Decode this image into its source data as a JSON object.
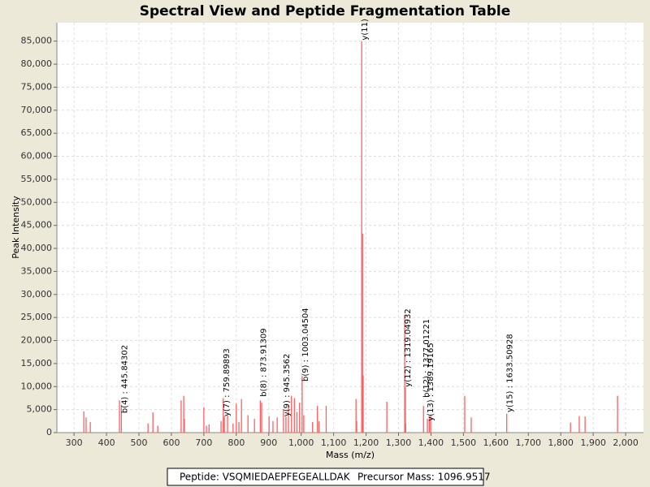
{
  "chart_data": {
    "type": "stem",
    "title": "Spectral View and Peptide Fragmentation Table",
    "x_label": "Mass (m/z)",
    "y_label": "Peak Intensity",
    "color": "#ff5f5f",
    "grid": true,
    "xlim": [
      247,
      2055
    ],
    "ylim": [
      0,
      89000
    ],
    "xticks": [
      300,
      400,
      500,
      600,
      700,
      800,
      900,
      {
        "value": 1000,
        "label": "1,000"
      },
      {
        "value": 1100,
        "label": "1,100"
      },
      {
        "value": 1200,
        "label": "1,200"
      },
      {
        "value": 1300,
        "label": "1,300"
      },
      {
        "value": 1400,
        "label": "1,400"
      },
      {
        "value": 1500,
        "label": "1,500"
      },
      {
        "value": 1600,
        "label": "1,600"
      },
      {
        "value": 1700,
        "label": "1,700"
      },
      {
        "value": 1800,
        "label": "1,800"
      },
      {
        "value": 1900,
        "label": "1,900"
      },
      {
        "value": 2000,
        "label": "2,000"
      }
    ],
    "yticks": [
      0,
      {
        "value": 5000,
        "label": "5,000"
      },
      {
        "value": 10000,
        "label": "10,000"
      },
      {
        "value": 15000,
        "label": "15,000"
      },
      {
        "value": 20000,
        "label": "20,000"
      },
      {
        "value": 25000,
        "label": "25,000"
      },
      {
        "value": 30000,
        "label": "30,000"
      },
      {
        "value": 35000,
        "label": "35,000"
      },
      {
        "value": 40000,
        "label": "40,000"
      },
      {
        "value": 45000,
        "label": "45,000"
      },
      {
        "value": 50000,
        "label": "50,000"
      },
      {
        "value": 55000,
        "label": "55,000"
      },
      {
        "value": 60000,
        "label": "60,000"
      },
      {
        "value": 65000,
        "label": "65,000"
      },
      {
        "value": 70000,
        "label": "70,000"
      },
      {
        "value": 75000,
        "label": "75,000"
      },
      {
        "value": 80000,
        "label": "80,000"
      },
      {
        "value": 85000,
        "label": "85,000"
      }
    ],
    "x": [
      330,
      337,
      350,
      440,
      445.8,
      528,
      543,
      558,
      630,
      638,
      640,
      700,
      708,
      716,
      753,
      759.9,
      763,
      773,
      790,
      800,
      808,
      816,
      836,
      856,
      873.9,
      878,
      901,
      913,
      926,
      945.4,
      953,
      961,
      970,
      979,
      987,
      995,
      1003,
      1008,
      1035,
      1050,
      1055,
      1077,
      1169,
      1171,
      1186.5,
      1189,
      1191,
      1264,
      1319,
      1321,
      1322,
      1377,
      1389,
      1395,
      1399,
      1504,
      1524,
      1633.5,
      1830,
      1857,
      1875,
      1975
    ],
    "values": [
      4600,
      3300,
      2300,
      7000,
      6000,
      2000,
      4400,
      1500,
      7000,
      8000,
      3000,
      5500,
      1500,
      1800,
      2500,
      7500,
      3500,
      3700,
      2000,
      6300,
      2300,
      7300,
      3800,
      3000,
      7000,
      6500,
      3600,
      2500,
      3300,
      5000,
      3500,
      6000,
      8000,
      7500,
      4500,
      6500,
      12300,
      3800,
      2300,
      5800,
      2500,
      5800,
      7300,
      2500,
      85000,
      43200,
      12400,
      6700,
      25600,
      9800,
      2000,
      5800,
      3000,
      3500,
      3700,
      8000,
      3300,
      4100,
      2200,
      3600,
      3500,
      8000
    ],
    "annotations": [
      {
        "text": "y(11)",
        "x": 1186.5,
        "y": 85200
      },
      {
        "text": "b(4) : 445.84302",
        "x": 445.8,
        "y": 4200
      },
      {
        "text": "y(7) : 759.89893",
        "x": 759.9,
        "y": 3500
      },
      {
        "text": "b(8) : 873.91309",
        "x": 873.9,
        "y": 7800
      },
      {
        "text": "y(9) : 945.3562",
        "x": 945.4,
        "y": 3500
      },
      {
        "text": "b(9) : 1003.04504",
        "x": 1003,
        "y": 11100
      },
      {
        "text": "y(12) : 1319.04932",
        "x": 1319,
        "y": 9900
      },
      {
        "text": "b(12) : 1377.01221",
        "x": 1377,
        "y": 7600
      },
      {
        "text": "y(13) : 1389.19165",
        "x": 1389,
        "y": 2500
      },
      {
        "text": "y(15) : 1633.50928",
        "x": 1633.5,
        "y": 4400
      }
    ],
    "footer": [
      "Peptide: VSQMIEDAEPFEGEALLDAK",
      "Precursor Mass: 1096.9517"
    ]
  }
}
